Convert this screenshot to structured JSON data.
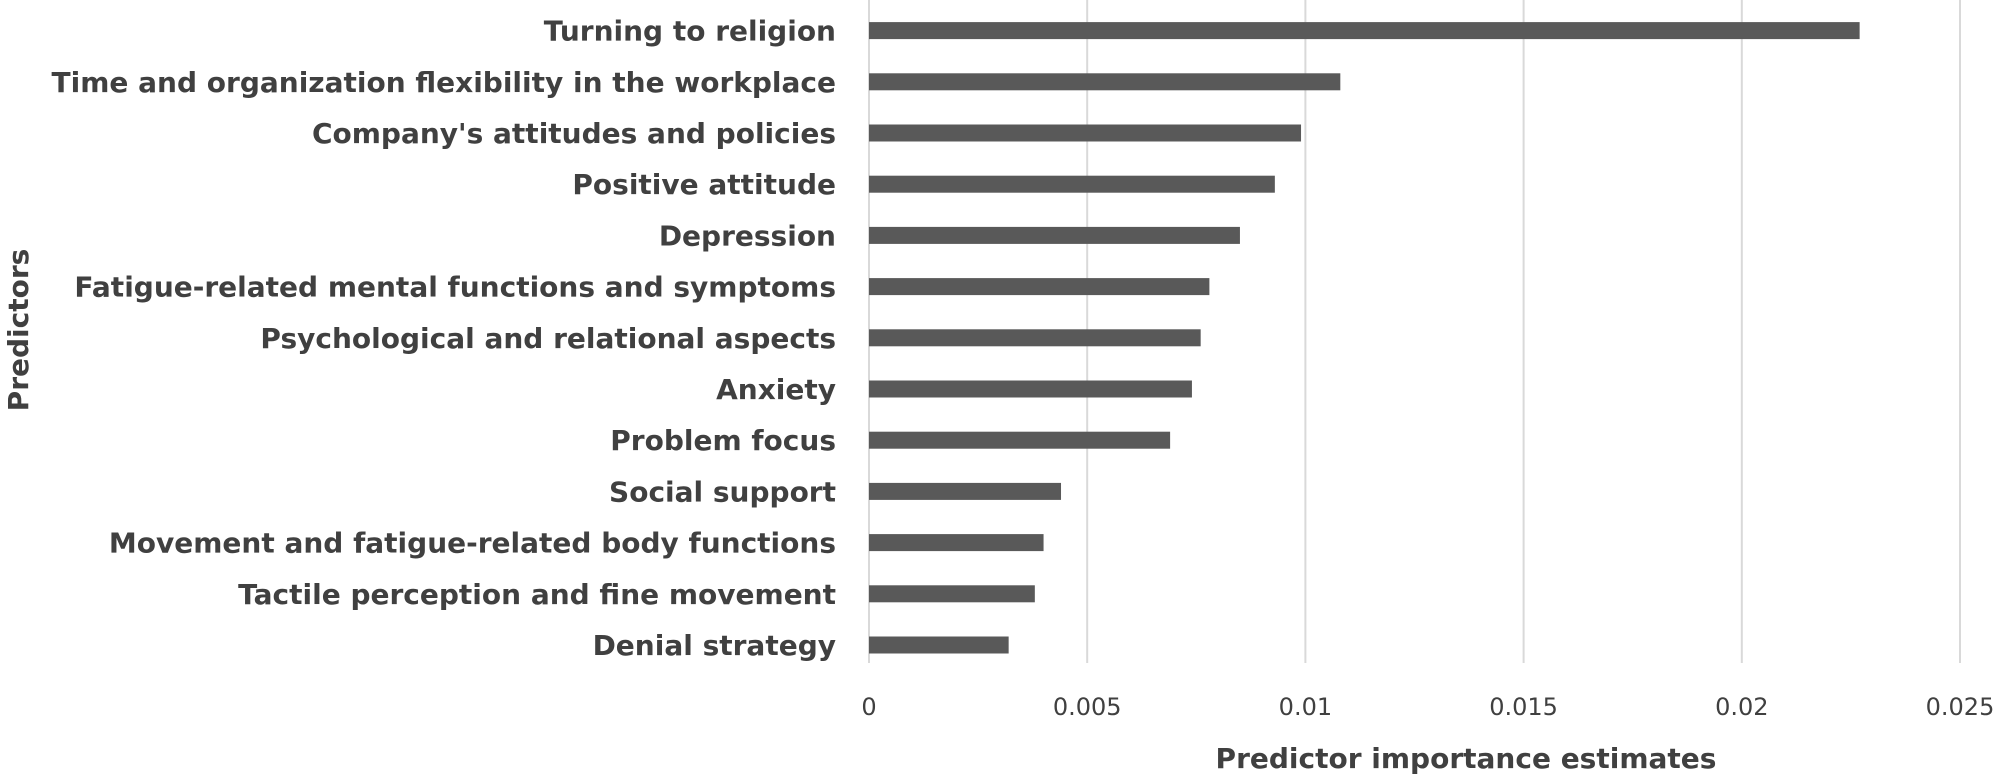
{
  "chart_data": {
    "type": "bar",
    "orientation": "horizontal",
    "categories": [
      "Turning to religion",
      "Time and organization flexibility in the workplace",
      "Company's attitudes and policies",
      "Positive attitude",
      "Depression",
      "Fatigue-related mental functions and symptoms",
      "Psychological and relational aspects",
      "Anxiety",
      "Problem focus",
      "Social support",
      "Movement and fatigue-related body functions",
      "Tactile perception and fine movement",
      "Denial strategy"
    ],
    "values": [
      0.0227,
      0.0108,
      0.0099,
      0.0093,
      0.0085,
      0.0078,
      0.0076,
      0.0074,
      0.0069,
      0.0044,
      0.004,
      0.0038,
      0.0032
    ],
    "xlabel": "Predictor importance estimates",
    "ylabel": "Predictors",
    "xlim": [
      0,
      0.025
    ],
    "xticks": [
      0,
      0.005,
      0.01,
      0.015,
      0.02,
      0.025
    ],
    "xtick_labels": [
      "0",
      "0.005",
      "0.01",
      "0.015",
      "0.02",
      "0.025"
    ],
    "grid": "vertical",
    "bar_color": "#595959"
  }
}
